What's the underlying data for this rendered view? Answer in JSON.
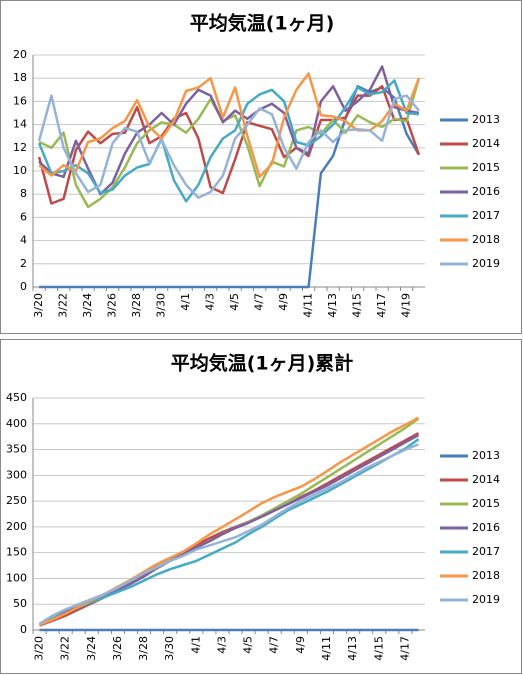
{
  "chart_data": [
    {
      "type": "line",
      "title": "平均気温(1ヶ月)",
      "categories": [
        "3/20",
        null,
        "3/22",
        null,
        "3/24",
        null,
        "3/26",
        null,
        "3/28",
        null,
        "3/30",
        null,
        "4/1",
        null,
        "4/3",
        null,
        "4/5",
        null,
        "4/7",
        null,
        "4/9",
        null,
        "4/11",
        null,
        "4/13",
        null,
        "4/15",
        null,
        "4/17",
        null,
        "4/19",
        null
      ],
      "ylim": [
        0,
        20
      ],
      "yticks": [
        0,
        2,
        4,
        6,
        8,
        10,
        12,
        14,
        16,
        18,
        20
      ],
      "grid": true,
      "legend": "right",
      "series": [
        {
          "name": "2013",
          "color": "#4a7ebb",
          "values": [
            0,
            0,
            0,
            0,
            0,
            0,
            0,
            0,
            0,
            0,
            0,
            0,
            0,
            0,
            0,
            0,
            0,
            0,
            0,
            0,
            0,
            0,
            0,
            9.8,
            11.3,
            14.5,
            17.3,
            16.8,
            17.2,
            16.3,
            13.2,
            11.4
          ]
        },
        {
          "name": "2014",
          "color": "#be4b48",
          "values": [
            11.2,
            7.2,
            7.6,
            11.8,
            13.4,
            12.4,
            13.2,
            13.3,
            15.5,
            12.4,
            13,
            14.5,
            15,
            12.8,
            8.6,
            8.1,
            11,
            14.2,
            13.9,
            13.6,
            11.2,
            12,
            11.3,
            14.4,
            14.4,
            14.6,
            16.5,
            16.5,
            17.3,
            14.4,
            14.5,
            11.4
          ]
        },
        {
          "name": "2015",
          "color": "#98b954",
          "values": [
            12.5,
            12,
            13.3,
            8.8,
            6.9,
            7.6,
            8.6,
            10.3,
            12.4,
            13.5,
            14.2,
            14,
            13.3,
            14.5,
            16.2,
            14.3,
            14.8,
            12.2,
            8.7,
            10.8,
            10.4,
            13.5,
            13.8,
            13.2,
            14.4,
            13.3,
            14.8,
            14.2,
            13.8,
            14.5,
            14.3,
            18
          ]
        },
        {
          "name": "2016",
          "color": "#7d60a0",
          "values": [
            10.8,
            9.8,
            9.5,
            12.6,
            10.2,
            8,
            9,
            11.5,
            13.3,
            14,
            15,
            14,
            15.8,
            17,
            16.5,
            14.2,
            15.2,
            14.5,
            15.3,
            15.8,
            15,
            12,
            11.5,
            16,
            17.3,
            15.2,
            16,
            17,
            19,
            15.5,
            15.2,
            15
          ]
        },
        {
          "name": "2017",
          "color": "#46aac5",
          "values": [
            12.4,
            9.8,
            10,
            10.5,
            9.8,
            8.1,
            8.4,
            9.6,
            10.3,
            10.6,
            12.8,
            9.2,
            7.4,
            8.8,
            11.2,
            12.8,
            13.5,
            15.8,
            16.6,
            17,
            16,
            12.5,
            12.2,
            13,
            14,
            15.5,
            17.2,
            16.6,
            16.8,
            17.8,
            15,
            14.9
          ]
        },
        {
          "name": "2018",
          "color": "#f79646",
          "values": [
            10.5,
            9.6,
            10.5,
            10,
            12.5,
            12.8,
            13.7,
            14.3,
            16.1,
            13.8,
            12.8,
            14.3,
            16.9,
            17.2,
            18,
            14.6,
            17.2,
            13,
            9.5,
            10.6,
            14.6,
            17,
            18.4,
            14.8,
            14.7,
            14.3,
            13.5,
            13.5,
            14.3,
            15.8,
            15.2,
            18
          ]
        },
        {
          "name": "2019",
          "color": "#95b3d7",
          "values": [
            12.6,
            16.5,
            12,
            9.8,
            8.2,
            8.8,
            12.4,
            13.7,
            13.4,
            10.7,
            12.7,
            10.5,
            8.8,
            7.7,
            8.2,
            9.6,
            12.8,
            14,
            15.4,
            14.9,
            12,
            10.2,
            12.5,
            13.5,
            12.5,
            13.5,
            13.6,
            13.5,
            12.6,
            16.2,
            16.5,
            15.2
          ]
        }
      ]
    },
    {
      "type": "line",
      "title": "平均気温(1ヶ月)累計",
      "categories": [
        "3/20",
        null,
        "3/22",
        null,
        "3/24",
        null,
        "3/26",
        null,
        "3/28",
        null,
        "3/30",
        null,
        "4/1",
        null,
        "4/3",
        null,
        "4/5",
        null,
        "4/7",
        null,
        "4/9",
        null,
        "4/11",
        null,
        "4/13",
        null,
        "4/15",
        null,
        "4/17",
        null
      ],
      "ylim": [
        0,
        450
      ],
      "yticks": [
        0,
        50,
        100,
        150,
        200,
        250,
        300,
        350,
        400,
        450
      ],
      "grid": true,
      "legend": "right",
      "series": [
        {
          "name": "2013",
          "color": "#4a7ebb",
          "values": [
            0,
            0,
            0,
            0,
            0,
            0,
            0,
            0,
            0,
            0,
            0,
            0,
            0,
            0,
            0,
            0,
            0,
            0,
            0,
            0,
            0,
            0,
            0,
            0,
            0,
            0,
            0,
            0,
            0,
            0
          ]
        },
        {
          "name": "2014",
          "color": "#be4b48",
          "values": [
            9,
            18,
            28,
            40,
            52,
            64,
            78,
            92,
            106,
            122,
            136,
            150,
            164,
            178,
            190,
            200,
            210,
            220,
            232,
            244,
            258,
            270,
            284,
            298,
            312,
            326,
            340,
            354,
            368,
            382
          ]
        },
        {
          "name": "2015",
          "color": "#98b954",
          "values": [
            11,
            22,
            36,
            48,
            58,
            68,
            82,
            96,
            110,
            124,
            136,
            148,
            160,
            172,
            186,
            198,
            210,
            222,
            236,
            250,
            264,
            280,
            296,
            312,
            328,
            344,
            360,
            376,
            392,
            410
          ]
        },
        {
          "name": "2016",
          "color": "#7d60a0",
          "values": [
            11,
            22,
            35,
            48,
            58,
            66,
            78,
            90,
            104,
            120,
            134,
            148,
            160,
            172,
            186,
            198,
            208,
            220,
            232,
            244,
            256,
            268,
            280,
            294,
            308,
            322,
            336,
            350,
            364,
            378
          ]
        },
        {
          "name": "2017",
          "color": "#46aac5",
          "values": [
            11,
            22,
            33,
            44,
            54,
            64,
            74,
            84,
            96,
            108,
            118,
            126,
            134,
            146,
            158,
            170,
            186,
            200,
            216,
            232,
            244,
            256,
            268,
            282,
            296,
            310,
            324,
            338,
            352,
            370
          ]
        },
        {
          "name": "2018",
          "color": "#f79646",
          "values": [
            10,
            20,
            32,
            45,
            58,
            70,
            84,
            98,
            113,
            128,
            140,
            152,
            168,
            185,
            200,
            215,
            230,
            246,
            258,
            268,
            278,
            292,
            308,
            325,
            340,
            355,
            370,
            385,
            398,
            412
          ]
        },
        {
          "name": "2019",
          "color": "#95b3d7",
          "values": [
            12,
            28,
            40,
            50,
            60,
            70,
            82,
            96,
            110,
            122,
            134,
            144,
            156,
            164,
            172,
            180,
            192,
            204,
            220,
            236,
            250,
            262,
            274,
            286,
            300,
            314,
            326,
            338,
            350,
            360
          ]
        }
      ]
    }
  ]
}
